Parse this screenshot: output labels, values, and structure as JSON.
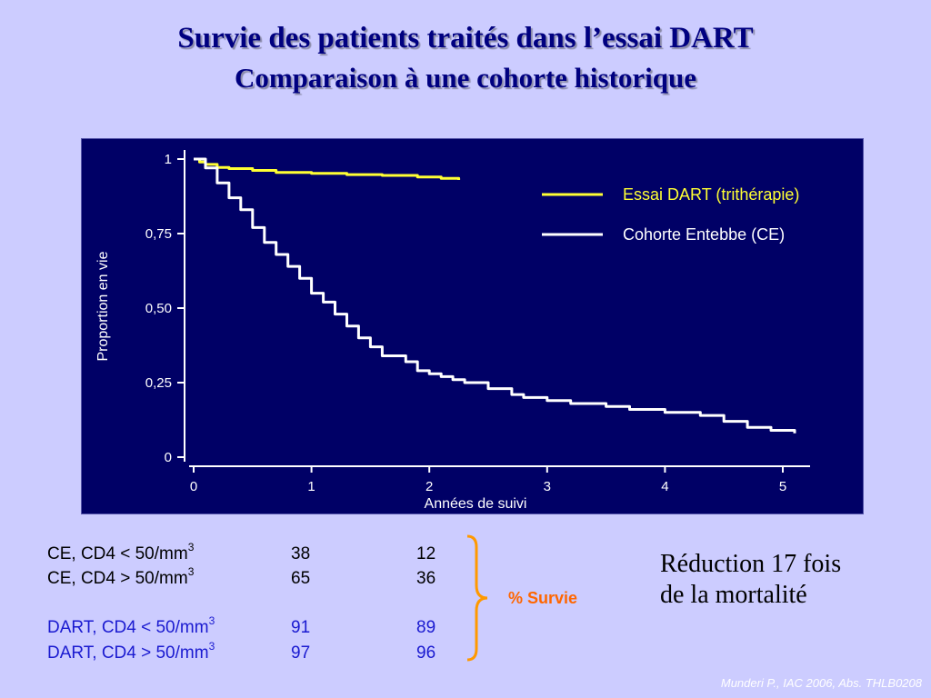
{
  "slide": {
    "title": "Survie des patients traités dans l’essai DART",
    "subtitle": "Comparaison à une cohorte historique",
    "citation": "Munderi P., IAC 2006, Abs. THLB0208"
  },
  "colors": {
    "background": "#ccccff",
    "chart_background": "#000066",
    "title": "#000080",
    "dart_series": "#ffff33",
    "ce_series": "#ffffff",
    "dart_text": "#1a1ad0",
    "brace": "#ff9900",
    "survie_label": "#ff6600"
  },
  "chart_data": {
    "type": "line",
    "title": "",
    "xlabel": "Années de suivi",
    "ylabel": "Proportion en vie",
    "xlim": [
      0,
      5
    ],
    "ylim": [
      0,
      1
    ],
    "xticks": [
      "0",
      "1",
      "2",
      "3",
      "4",
      "5"
    ],
    "yticks": [
      "0",
      "0,25",
      "0,50",
      "0,75",
      "1"
    ],
    "grid": false,
    "legend_position": "top-right",
    "series": [
      {
        "name": "Essai DART (trithérapie)",
        "color": "#ffff33",
        "x": [
          0,
          0.05,
          0.1,
          0.2,
          0.3,
          0.5,
          0.7,
          1.0,
          1.3,
          1.6,
          1.9,
          2.1,
          2.25
        ],
        "y": [
          1.0,
          0.99,
          0.982,
          0.972,
          0.968,
          0.962,
          0.955,
          0.952,
          0.948,
          0.945,
          0.94,
          0.935,
          0.93
        ]
      },
      {
        "name": "Cohorte Entebbe (CE)",
        "color": "#ffffff",
        "x": [
          0,
          0.1,
          0.2,
          0.3,
          0.4,
          0.5,
          0.6,
          0.7,
          0.8,
          0.9,
          1.0,
          1.1,
          1.2,
          1.3,
          1.4,
          1.5,
          1.6,
          1.8,
          1.9,
          2.0,
          2.1,
          2.2,
          2.3,
          2.5,
          2.7,
          2.8,
          3.0,
          3.2,
          3.5,
          3.7,
          3.9,
          4.0,
          4.1,
          4.3,
          4.5,
          4.7,
          4.9,
          5.1
        ],
        "y": [
          1.0,
          0.97,
          0.92,
          0.87,
          0.83,
          0.77,
          0.72,
          0.68,
          0.64,
          0.6,
          0.55,
          0.52,
          0.48,
          0.44,
          0.4,
          0.37,
          0.34,
          0.32,
          0.29,
          0.28,
          0.27,
          0.26,
          0.25,
          0.23,
          0.21,
          0.2,
          0.19,
          0.18,
          0.17,
          0.16,
          0.16,
          0.15,
          0.15,
          0.14,
          0.12,
          0.1,
          0.09,
          0.08
        ]
      }
    ]
  },
  "table": {
    "label": "% Survie",
    "rows": [
      {
        "label": "CE, CD4 < 50/mm",
        "sup": "3",
        "v1": "38",
        "v2": "12",
        "group": "CE"
      },
      {
        "label": "CE, CD4 > 50/mm",
        "sup": "3",
        "v1": "65",
        "v2": "36",
        "group": "CE"
      },
      {
        "label": "DART, CD4 < 50/mm",
        "sup": "3",
        "v1": "91",
        "v2": "89",
        "group": "DART"
      },
      {
        "label": "DART, CD4 > 50/mm",
        "sup": "3",
        "v1": "97",
        "v2": "96",
        "group": "DART"
      }
    ]
  },
  "reduction": {
    "line1": "Réduction 17 fois",
    "line2": "de la mortalité"
  }
}
